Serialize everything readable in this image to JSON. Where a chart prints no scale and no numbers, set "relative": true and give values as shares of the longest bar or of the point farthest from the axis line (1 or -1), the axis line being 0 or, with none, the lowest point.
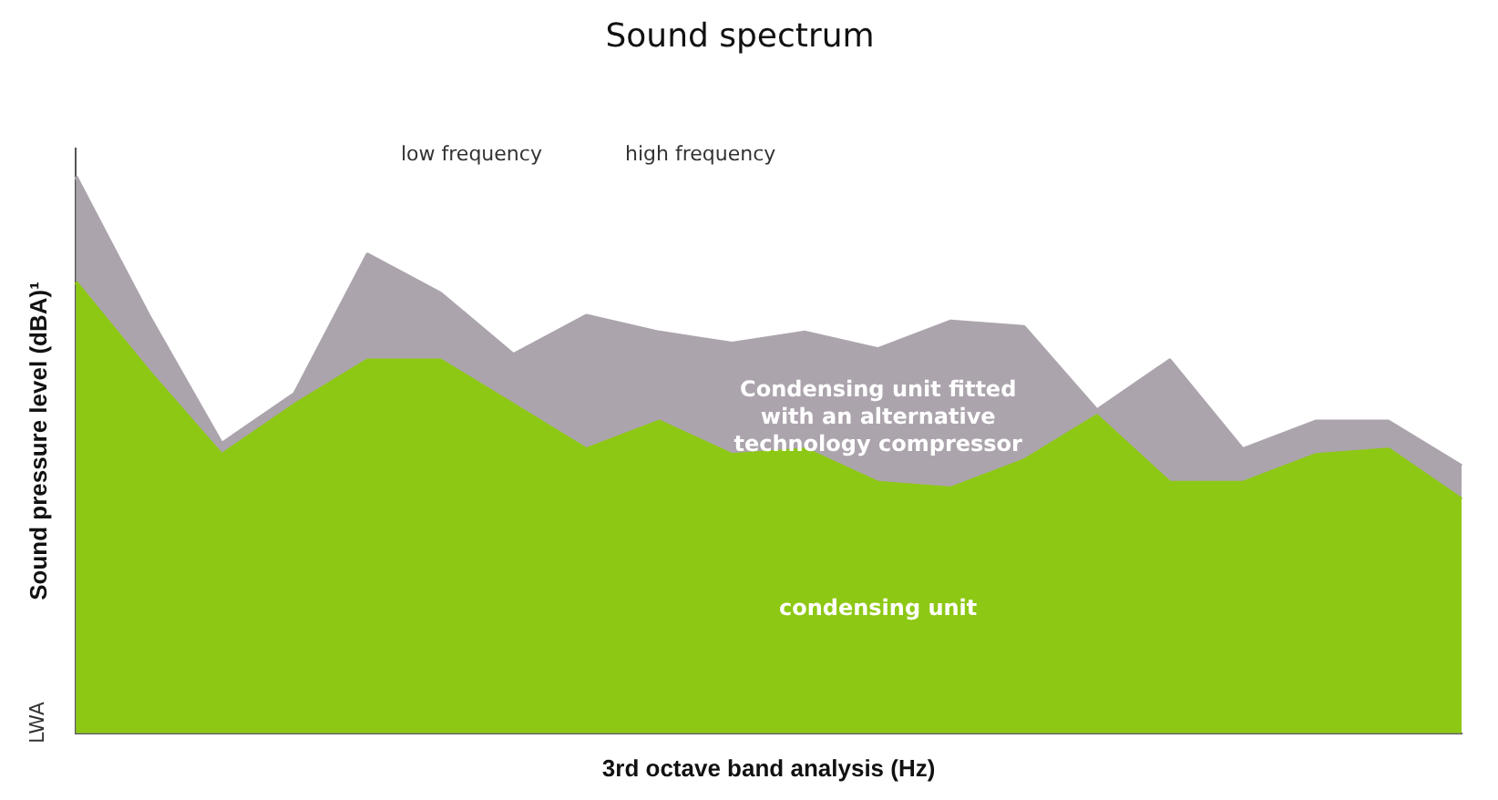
{
  "chart_data": {
    "type": "area",
    "title": "Sound spectrum",
    "xlabel": "3rd octave band analysis (Hz)",
    "ylabel": "Sound pressure level (dBA)¹",
    "relative": true,
    "legend": false,
    "categories": [
      null,
      null,
      null,
      null,
      null,
      null,
      null,
      null,
      null,
      null,
      null,
      null,
      null,
      null,
      null,
      null,
      null,
      null,
      null,
      null
    ],
    "series": [
      {
        "name": "Condensing unit fitted with an alternative technology compressor",
        "color": "#aca4ad",
        "values": [
          1,
          0.75,
          0.52,
          0.61,
          0.86,
          0.79,
          0.68,
          0.75,
          0.72,
          0.7,
          0.72,
          0.69,
          0.74,
          0.73,
          0.58,
          0.67,
          0.51,
          0.56,
          0.56,
          0.48
        ]
      },
      {
        "name": "condensing unit",
        "color": "#8dc814",
        "values": [
          0.81,
          0.65,
          0.5,
          0.59,
          0.67,
          0.67,
          0.59,
          0.51,
          0.56,
          0.5,
          0.51,
          0.45,
          0.44,
          0.49,
          0.57,
          0.45,
          0.45,
          0.5,
          0.51,
          0.42
        ]
      }
    ],
    "annotations": [
      "low frequency",
      "high frequency",
      "LWA"
    ]
  }
}
